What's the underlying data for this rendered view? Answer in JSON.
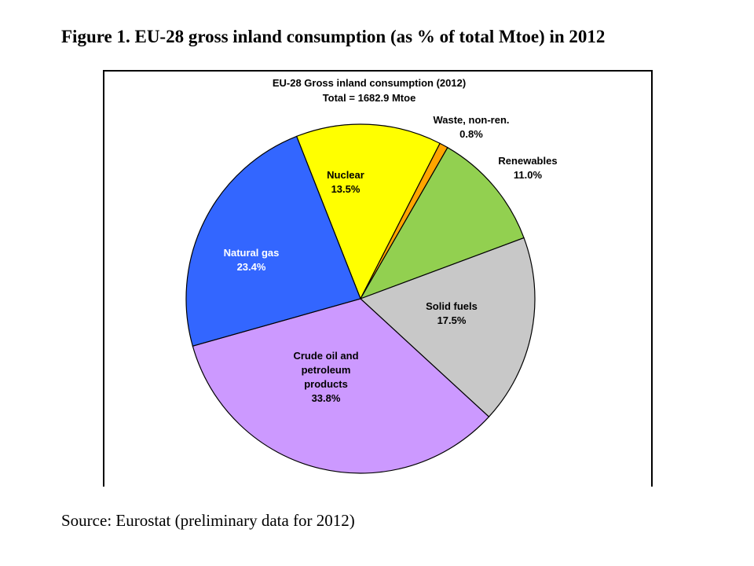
{
  "figure": {
    "title": "Figure 1. EU-28 gross inland consumption (as % of total Mtoe) in 2012",
    "source": "Source: Eurostat (preliminary data for 2012)"
  },
  "chart_data": {
    "type": "pie",
    "title": "EU-28 Gross inland consumption (2012)",
    "subtitle": "Total = 1682.9 Mtoe",
    "unit": "%",
    "slices": [
      {
        "name": "Nuclear",
        "label_lines": [
          "Nuclear"
        ],
        "value": 13.5,
        "value_label": "13.5%",
        "color": "#ffff00",
        "label_position": "inside",
        "label_color": "#000000"
      },
      {
        "name": "Waste, non-ren.",
        "label_lines": [
          "Waste, non-ren."
        ],
        "value": 0.8,
        "value_label": "0.8%",
        "color": "#ffa500",
        "label_position": "outside",
        "label_color": "#000000"
      },
      {
        "name": "Renewables",
        "label_lines": [
          "Renewables"
        ],
        "value": 11.0,
        "value_label": "11.0%",
        "color": "#92d050",
        "label_position": "outside",
        "label_color": "#000000"
      },
      {
        "name": "Solid fuels",
        "label_lines": [
          "Solid fuels"
        ],
        "value": 17.5,
        "value_label": "17.5%",
        "color": "#c8c8c8",
        "label_position": "inside",
        "label_color": "#000000"
      },
      {
        "name": "Crude oil and petroleum products",
        "label_lines": [
          "Crude oil and",
          "petroleum",
          "products"
        ],
        "value": 33.8,
        "value_label": "33.8%",
        "color": "#cc99ff",
        "label_position": "inside",
        "label_color": "#000000"
      },
      {
        "name": "Natural gas",
        "label_lines": [
          "Natural gas"
        ],
        "value": 23.4,
        "value_label": "23.4%",
        "color": "#3366ff",
        "label_position": "inside",
        "label_color": "#ffffff"
      }
    ]
  }
}
